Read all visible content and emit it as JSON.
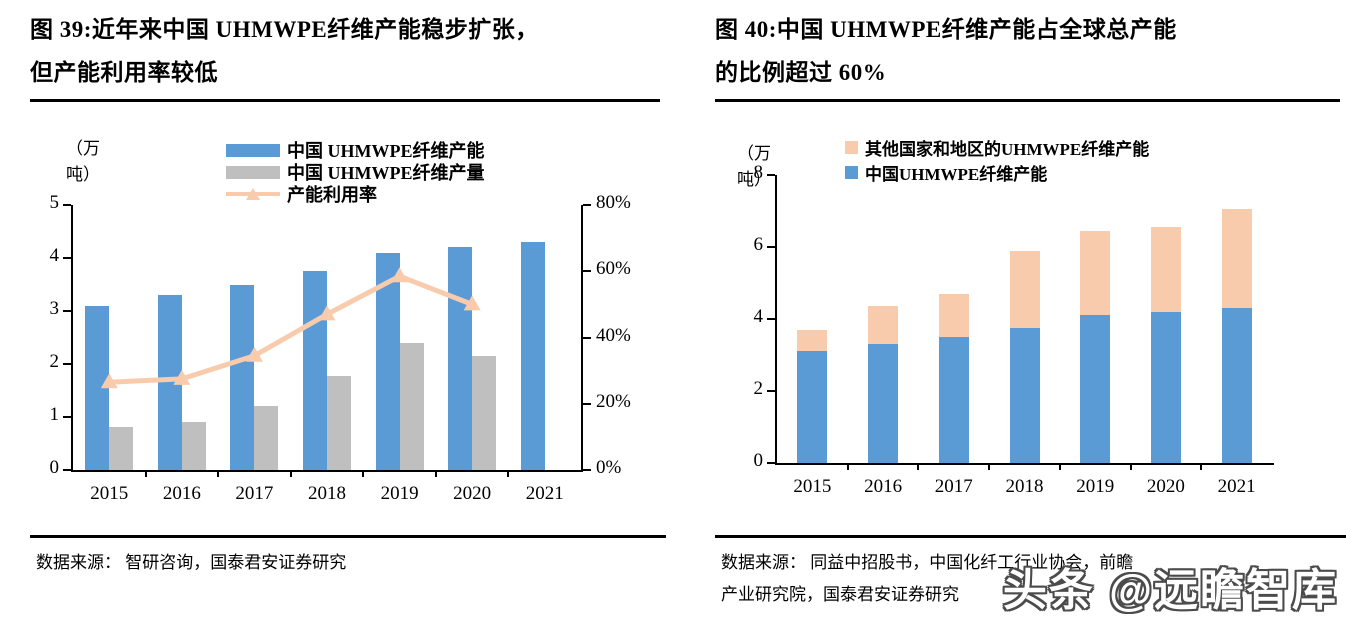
{
  "panels": [
    {
      "id": "fig39",
      "title_lines": [
        "图 39:近年来中国 UHMWPE纤维产能稳步扩张，",
        "但产能利用率较低"
      ],
      "unit": [
        "（万",
        "吨）"
      ],
      "legend": [
        {
          "label": "中国 UHMWPE纤维产能",
          "swatch": "blue-bar"
        },
        {
          "label": "中国 UHMWPE纤维产量",
          "swatch": "gray-bar"
        },
        {
          "label": "产能利用率",
          "swatch": "peach-line-triangle"
        }
      ],
      "source_lines": [
        "数据来源： 智研咨询，国泰君安证券研究"
      ]
    },
    {
      "id": "fig40",
      "title_lines": [
        "图 40:中国 UHMWPE纤维产能占全球总产能",
        "的比例超过 60%"
      ],
      "unit": [
        "（万",
        "吨）"
      ],
      "legend": [
        {
          "label": "其他国家和地区的UHMWPE纤维产能",
          "swatch": "peach-square"
        },
        {
          "label": "中国UHMWPE纤维产能",
          "swatch": "blue-square"
        }
      ],
      "source_lines": [
        "数据来源： 同益中招股书，中国化纤工行业协会，前瞻",
        "产业研究院，国泰君安证券研究"
      ]
    }
  ],
  "watermark": "头条 @远瞻智库",
  "colors": {
    "blue": "#5B9BD5",
    "gray": "#BFBFBF",
    "peach": "#F8CBAD",
    "axis": "#000000"
  },
  "chart_data": [
    {
      "type": "bar",
      "subtype": "grouped-bars-with-line",
      "title": "近年来中国UHMWPE纤维产能稳步扩张，但产能利用率较低",
      "categories": [
        "2015",
        "2016",
        "2017",
        "2018",
        "2019",
        "2020",
        "2021"
      ],
      "series": [
        {
          "name": "中国UHMWPE纤维产能",
          "type": "bar",
          "axis": "left",
          "color": "#5B9BD5",
          "values": [
            3.1,
            3.3,
            3.5,
            3.75,
            4.1,
            4.2,
            4.3
          ]
        },
        {
          "name": "中国UHMWPE纤维产量",
          "type": "bar",
          "axis": "left",
          "color": "#BFBFBF",
          "values": [
            0.82,
            0.9,
            1.2,
            1.78,
            2.4,
            2.15,
            null
          ]
        },
        {
          "name": "产能利用率",
          "type": "line",
          "axis": "right",
          "color": "#F8CBAD",
          "values": [
            26.5,
            27.5,
            34.5,
            47,
            58.5,
            50,
            null
          ]
        }
      ],
      "y_left": {
        "label": "（万吨）",
        "min": 0,
        "max": 5,
        "ticks": [
          0,
          1,
          2,
          3,
          4,
          5
        ]
      },
      "y_right": {
        "min": 0,
        "max": 80,
        "ticks": [
          0,
          20,
          40,
          60,
          80
        ],
        "suffix": "%"
      },
      "grid": false,
      "legend_position": "top"
    },
    {
      "type": "bar",
      "subtype": "stacked",
      "title": "中国UHMWPE纤维产能占全球总产能的比例超过60%",
      "categories": [
        "2015",
        "2016",
        "2017",
        "2018",
        "2019",
        "2020",
        "2021"
      ],
      "series": [
        {
          "name": "中国UHMWPE纤维产能",
          "color": "#5B9BD5",
          "values": [
            3.1,
            3.3,
            3.5,
            3.75,
            4.1,
            4.2,
            4.3
          ]
        },
        {
          "name": "其他国家和地区的UHMWPE纤维产能",
          "color": "#F8CBAD",
          "values": [
            0.6,
            1.05,
            1.2,
            2.15,
            2.35,
            2.35,
            2.75
          ]
        }
      ],
      "y_left": {
        "label": "（万吨）",
        "min": 0,
        "max": 8,
        "ticks": [
          0,
          2,
          4,
          6,
          8
        ]
      },
      "grid": false,
      "legend_position": "top"
    }
  ]
}
